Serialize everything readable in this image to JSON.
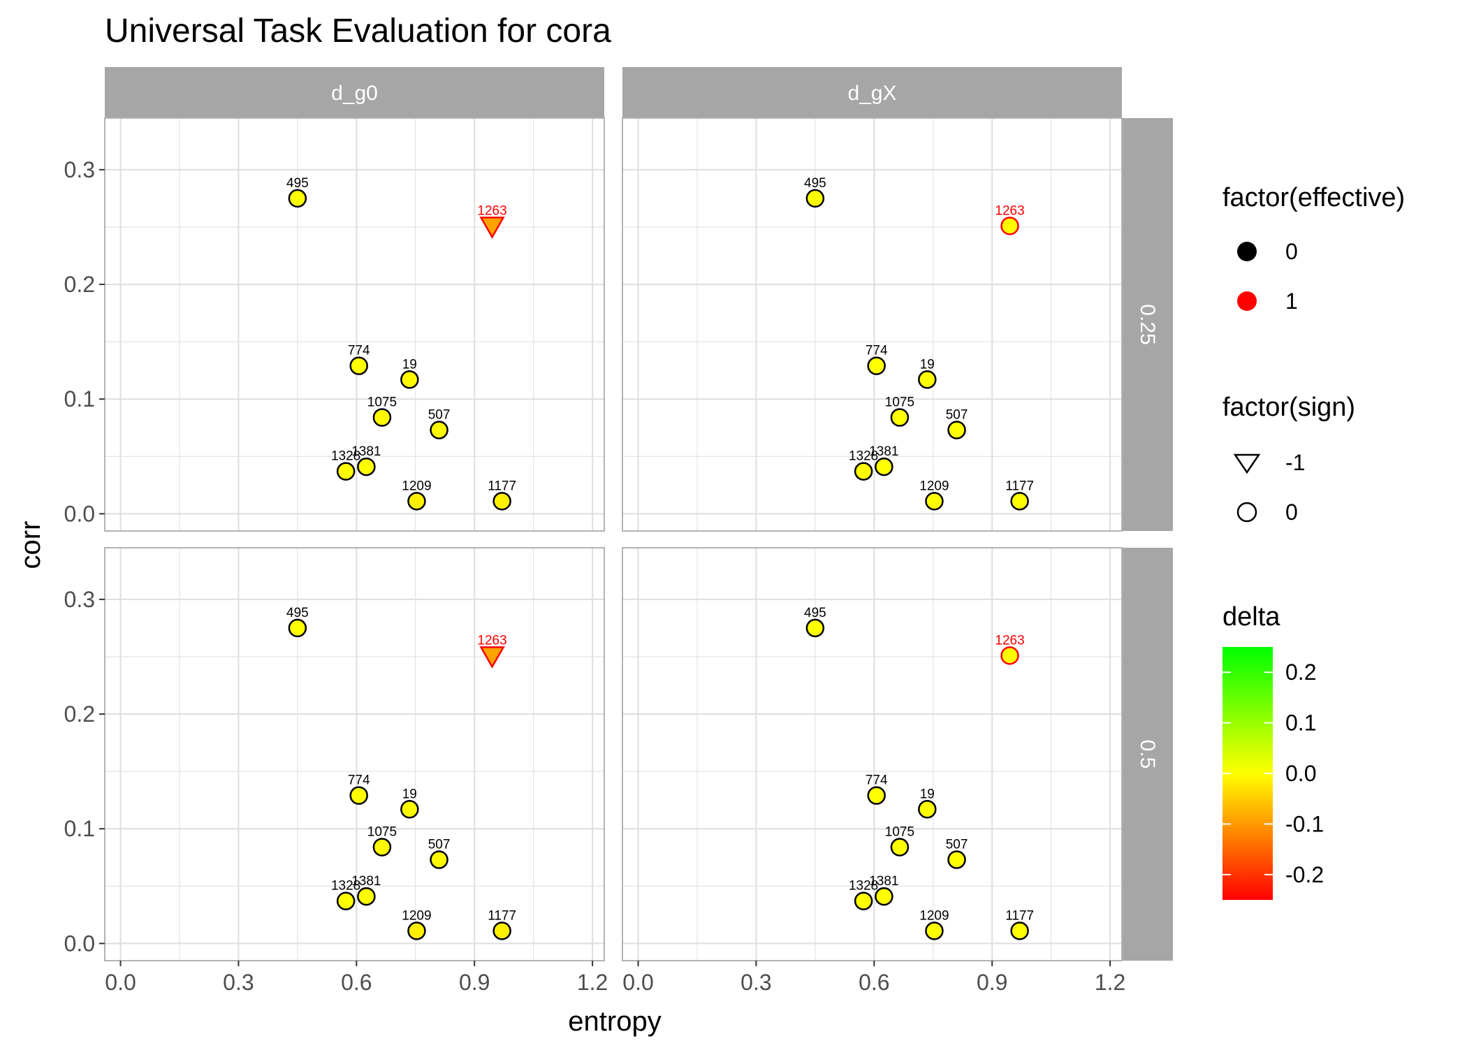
{
  "chart_data": {
    "type": "scatter",
    "title": "Universal Task Evaluation for cora",
    "xlabel": "entropy",
    "ylabel": "corr",
    "xlim": [
      -0.04,
      1.23
    ],
    "ylim": [
      -0.015,
      0.345
    ],
    "xticks": [
      "0.0",
      "0.3",
      "0.6",
      "0.9",
      "1.2"
    ],
    "yticks": [
      "0.0",
      "0.1",
      "0.2",
      "0.3"
    ],
    "facet_columns": [
      "d_g0",
      "d_gX"
    ],
    "facet_rows": [
      "0.25",
      "0.5"
    ],
    "grid": true,
    "legend_position": "right",
    "points_by_column": {
      "d_g0": [
        {
          "label": "495",
          "x": 0.45,
          "y": 0.275,
          "effective": 0,
          "sign": 0,
          "delta": 0.0
        },
        {
          "label": "1263",
          "x": 0.945,
          "y": 0.251,
          "effective": 1,
          "sign": -1,
          "delta": -0.09
        },
        {
          "label": "774",
          "x": 0.606,
          "y": 0.129,
          "effective": 0,
          "sign": 0,
          "delta": 0.0
        },
        {
          "label": "19",
          "x": 0.735,
          "y": 0.117,
          "effective": 0,
          "sign": 0,
          "delta": -0.005
        },
        {
          "label": "1075",
          "x": 0.665,
          "y": 0.084,
          "effective": 0,
          "sign": 0,
          "delta": -0.005
        },
        {
          "label": "507",
          "x": 0.81,
          "y": 0.073,
          "effective": 0,
          "sign": 0,
          "delta": -0.005
        },
        {
          "label": "1328",
          "x": 0.573,
          "y": 0.037,
          "effective": 0,
          "sign": 0,
          "delta": 0.0
        },
        {
          "label": "1381",
          "x": 0.625,
          "y": 0.041,
          "effective": 0,
          "sign": 0,
          "delta": 0.0
        },
        {
          "label": "1209",
          "x": 0.753,
          "y": 0.011,
          "effective": 0,
          "sign": 0,
          "delta": -0.015
        },
        {
          "label": "1177",
          "x": 0.97,
          "y": 0.011,
          "effective": 0,
          "sign": 0,
          "delta": -0.015
        }
      ],
      "d_gX": [
        {
          "label": "495",
          "x": 0.45,
          "y": 0.275,
          "effective": 0,
          "sign": 0,
          "delta": 0.0
        },
        {
          "label": "1263",
          "x": 0.945,
          "y": 0.251,
          "effective": 1,
          "sign": 0,
          "delta": 0.0
        },
        {
          "label": "774",
          "x": 0.606,
          "y": 0.129,
          "effective": 0,
          "sign": 0,
          "delta": 0.0
        },
        {
          "label": "19",
          "x": 0.735,
          "y": 0.117,
          "effective": 0,
          "sign": 0,
          "delta": 0.0
        },
        {
          "label": "1075",
          "x": 0.665,
          "y": 0.084,
          "effective": 0,
          "sign": 0,
          "delta": 0.0
        },
        {
          "label": "507",
          "x": 0.81,
          "y": 0.073,
          "effective": 0,
          "sign": 0,
          "delta": 0.0
        },
        {
          "label": "1328",
          "x": 0.573,
          "y": 0.037,
          "effective": 0,
          "sign": 0,
          "delta": 0.0
        },
        {
          "label": "1381",
          "x": 0.625,
          "y": 0.041,
          "effective": 0,
          "sign": 0,
          "delta": 0.0
        },
        {
          "label": "1209",
          "x": 0.753,
          "y": 0.011,
          "effective": 0,
          "sign": 0,
          "delta": 0.0
        },
        {
          "label": "1177",
          "x": 0.97,
          "y": 0.011,
          "effective": 0,
          "sign": 0,
          "delta": 0.0
        }
      ]
    },
    "legends": {
      "effective": {
        "title": "factor(effective)",
        "entries": [
          {
            "label": "0",
            "color": "#000000"
          },
          {
            "label": "1",
            "color": "#ff0000"
          }
        ]
      },
      "sign": {
        "title": "factor(sign)",
        "entries": [
          {
            "label": "-1",
            "shape": "triangle-down"
          },
          {
            "label": "0",
            "shape": "circle"
          }
        ]
      },
      "delta": {
        "title": "delta",
        "range": [
          -0.25,
          0.25
        ],
        "ticks": [
          "0.2",
          "0.1",
          "0.0",
          "-0.1",
          "-0.2"
        ],
        "tick_values": [
          0.2,
          0.1,
          0.0,
          -0.1,
          -0.2
        ],
        "colors": {
          "low": "#ff0000",
          "mid": "#ffff00",
          "high": "#00ff00"
        }
      }
    },
    "colors": {
      "strip_bg": "#a6a6a6",
      "grid": "#dedede",
      "panel_border": "#b3b3b3",
      "label_default": "#000000",
      "label_effective": "#ff0000"
    }
  }
}
